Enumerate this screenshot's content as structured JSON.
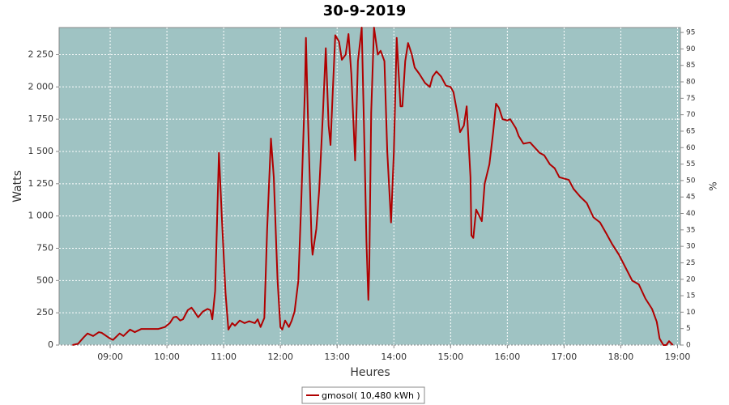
{
  "chart_data": {
    "type": "line",
    "title": "30-9-2019",
    "xlabel": "Heures",
    "ylabel": "Watts",
    "y2label": "%",
    "x": [
      "08:20",
      "08:26",
      "08:32",
      "08:36",
      "08:42",
      "08:48",
      "08:51",
      "09:00",
      "09:03",
      "09:10",
      "09:14",
      "09:21",
      "09:26",
      "09:33",
      "09:51",
      "09:58",
      "10:03",
      "10:07",
      "10:10",
      "10:14",
      "10:17",
      "10:22",
      "10:26",
      "10:29",
      "10:33",
      "10:38",
      "10:43",
      "10:46",
      "10:48",
      "10:51",
      "10:55",
      "10:58",
      "11:02",
      "11:05",
      "11:09",
      "11:12",
      "11:17",
      "11:22",
      "11:27",
      "11:33",
      "11:36",
      "11:39",
      "11:43",
      "11:46",
      "11:50",
      "11:53",
      "11:57",
      "12:00",
      "12:02",
      "12:05",
      "12:09",
      "12:12",
      "12:15",
      "12:19",
      "12:22",
      "12:26",
      "12:27",
      "12:29",
      "12:33",
      "12:34",
      "12:38",
      "12:41",
      "12:45",
      "12:48",
      "12:51",
      "12:53",
      "12:55",
      "12:58",
      "13:02",
      "13:05",
      "13:09",
      "13:12",
      "13:15",
      "13:19",
      "13:22",
      "13:26",
      "13:29",
      "13:31",
      "13:33",
      "13:34",
      "13:36",
      "13:39",
      "13:43",
      "13:46",
      "13:50",
      "13:53",
      "13:57",
      "14:00",
      "14:03",
      "14:07",
      "14:09",
      "14:12",
      "14:15",
      "14:19",
      "14:22",
      "14:27",
      "14:33",
      "14:38",
      "14:41",
      "14:45",
      "14:50",
      "14:55",
      "15:00",
      "15:03",
      "15:07",
      "15:10",
      "15:14",
      "15:17",
      "15:21",
      "15:22",
      "15:24",
      "15:27",
      "15:29",
      "15:33",
      "15:36",
      "15:41",
      "15:45",
      "15:48",
      "15:51",
      "15:55",
      "16:00",
      "16:03",
      "16:09",
      "16:12",
      "16:17",
      "16:24",
      "16:29",
      "16:34",
      "16:39",
      "16:45",
      "16:50",
      "16:55",
      "17:00",
      "17:05",
      "17:10",
      "17:17",
      "17:24",
      "17:31",
      "17:38",
      "17:45",
      "17:51",
      "17:58",
      "18:05",
      "18:12",
      "18:19",
      "18:26",
      "18:33",
      "18:38",
      "18:41",
      "18:45",
      "18:48",
      "18:51",
      "18:55"
    ],
    "series": [
      {
        "name": "gmosol( 10,480 kWh )",
        "color": "#b00000",
        "values": [
          0,
          10,
          60,
          90,
          70,
          100,
          95,
          50,
          40,
          90,
          70,
          120,
          100,
          125,
          125,
          140,
          170,
          215,
          220,
          190,
          200,
          270,
          290,
          260,
          215,
          260,
          280,
          270,
          200,
          420,
          1490,
          1000,
          400,
          120,
          170,
          150,
          190,
          170,
          185,
          170,
          200,
          140,
          210,
          900,
          1600,
          1300,
          500,
          140,
          120,
          190,
          140,
          190,
          260,
          500,
          1100,
          2000,
          2380,
          1800,
          800,
          700,
          900,
          1200,
          1800,
          2300,
          1700,
          1550,
          1900,
          2400,
          2350,
          2210,
          2250,
          2410,
          2100,
          1430,
          2200,
          2460,
          1500,
          800,
          350,
          600,
          1800,
          2460,
          2250,
          2280,
          2200,
          1500,
          950,
          1500,
          2380,
          1850,
          1850,
          2200,
          2340,
          2250,
          2150,
          2100,
          2030,
          2000,
          2080,
          2120,
          2080,
          2010,
          2000,
          1960,
          1800,
          1650,
          1700,
          1850,
          1300,
          850,
          830,
          1050,
          1020,
          960,
          1250,
          1400,
          1650,
          1870,
          1840,
          1750,
          1740,
          1750,
          1680,
          1620,
          1560,
          1570,
          1530,
          1490,
          1470,
          1400,
          1370,
          1300,
          1290,
          1280,
          1210,
          1150,
          1100,
          990,
          950,
          860,
          780,
          700,
          600,
          500,
          470,
          360,
          280,
          180,
          50,
          0,
          0,
          30,
          0
        ]
      }
    ],
    "xlim": [
      "08:06",
      "19:03"
    ],
    "xticks": [
      "09:00",
      "10:00",
      "11:00",
      "12:00",
      "13:00",
      "14:00",
      "15:00",
      "16:00",
      "17:00",
      "18:00",
      "19:00"
    ],
    "ylim": [
      0,
      2460
    ],
    "yticks": [
      0,
      250,
      500,
      750,
      {
        "value": 1000,
        "label": "1 000"
      },
      {
        "value": 1250,
        "label": "1 250"
      },
      {
        "value": 1500,
        "label": "1 500"
      },
      {
        "value": 1750,
        "label": "1 750"
      },
      {
        "value": 2000,
        "label": "2 000"
      },
      {
        "value": 2250,
        "label": "2 250"
      }
    ],
    "y2lim": [
      0,
      96.5
    ],
    "y2ticks": [
      0,
      5,
      10,
      15,
      20,
      25,
      30,
      35,
      40,
      45,
      50,
      55,
      60,
      65,
      70,
      75,
      80,
      85,
      90,
      95
    ],
    "grid": true,
    "plot_background": "#9fc3c3",
    "legend": "bottom"
  }
}
